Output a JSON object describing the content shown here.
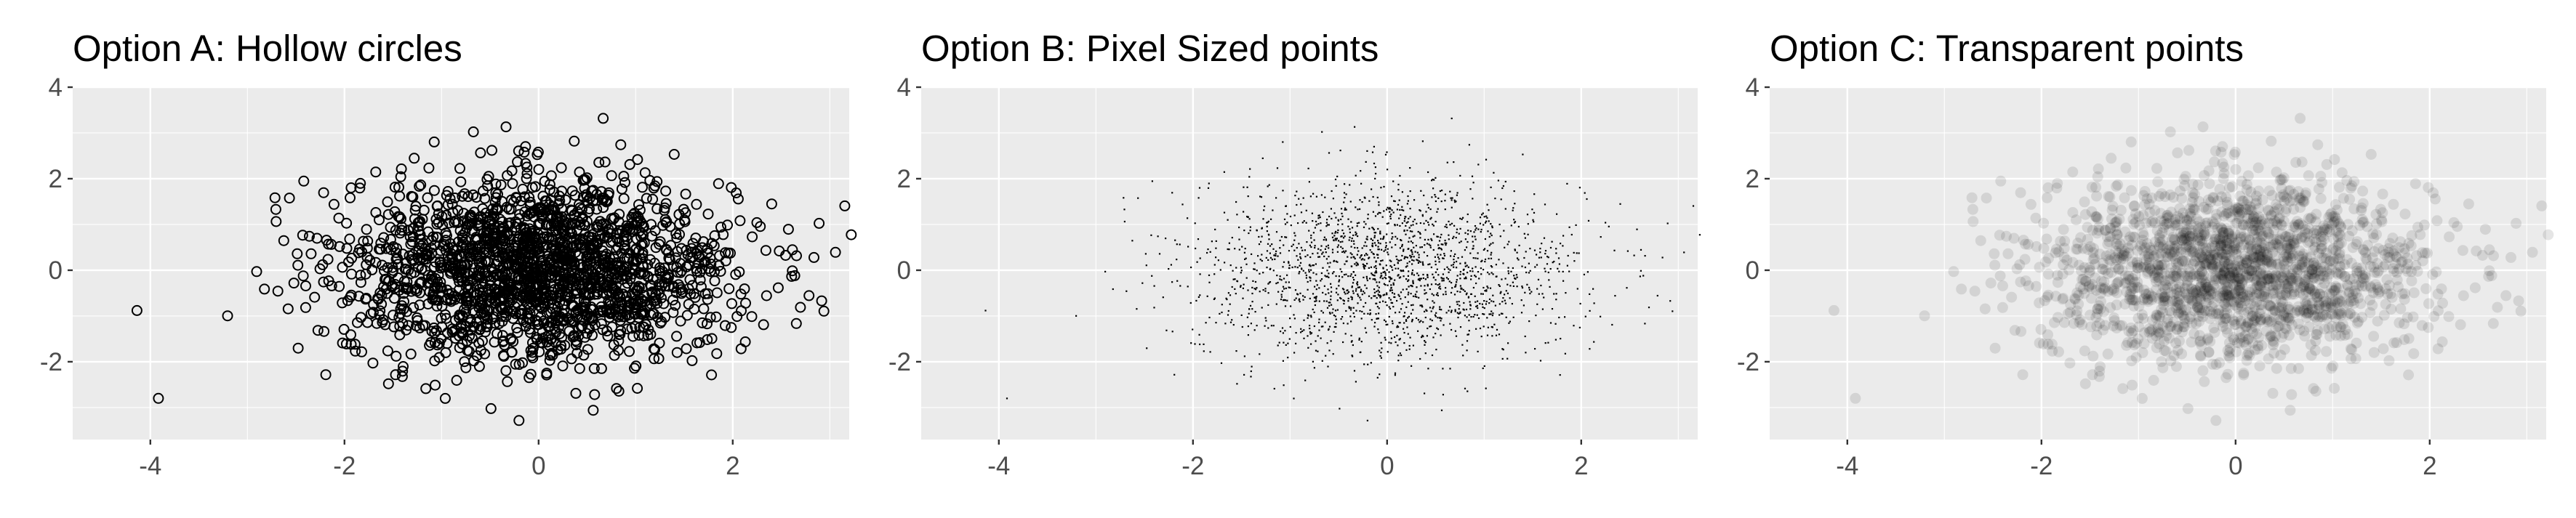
{
  "chart_data": [
    {
      "type": "scatter",
      "title": "Option A: Hollow circles",
      "xlabel": "",
      "ylabel": "",
      "marker": "hollow-circle",
      "xlim": [
        -4.8,
        3.2
      ],
      "ylim": [
        -3.7,
        4.0
      ],
      "x_ticks": [
        -4,
        -2,
        0,
        2
      ],
      "y_ticks": [
        -2,
        0,
        2,
        4
      ],
      "grid": true,
      "n_points": 2000,
      "distribution": "bivariate standard normal",
      "colors": {
        "point": "#000000",
        "panel": "#ebebeb"
      }
    },
    {
      "type": "scatter",
      "title": "Option B: Pixel Sized points",
      "xlabel": "",
      "ylabel": "",
      "marker": "pixel",
      "xlim": [
        -4.8,
        3.2
      ],
      "ylim": [
        -3.7,
        4.0
      ],
      "x_ticks": [
        -4,
        -2,
        0,
        2
      ],
      "y_ticks": [
        -2,
        0,
        2,
        4
      ],
      "grid": true,
      "n_points": 2000,
      "distribution": "bivariate standard normal",
      "colors": {
        "point": "#000000",
        "panel": "#ebebeb"
      }
    },
    {
      "type": "scatter",
      "title": "Option C: Transparent points",
      "xlabel": "",
      "ylabel": "",
      "marker": "filled-circle",
      "alpha": 0.1,
      "xlim": [
        -4.8,
        3.2
      ],
      "ylim": [
        -3.7,
        4.0
      ],
      "x_ticks": [
        -4,
        -2,
        0,
        2
      ],
      "y_ticks": [
        -2,
        0,
        2,
        4
      ],
      "grid": true,
      "n_points": 2000,
      "distribution": "bivariate standard normal",
      "colors": {
        "point": "#000000",
        "panel": "#ebebeb"
      }
    }
  ]
}
